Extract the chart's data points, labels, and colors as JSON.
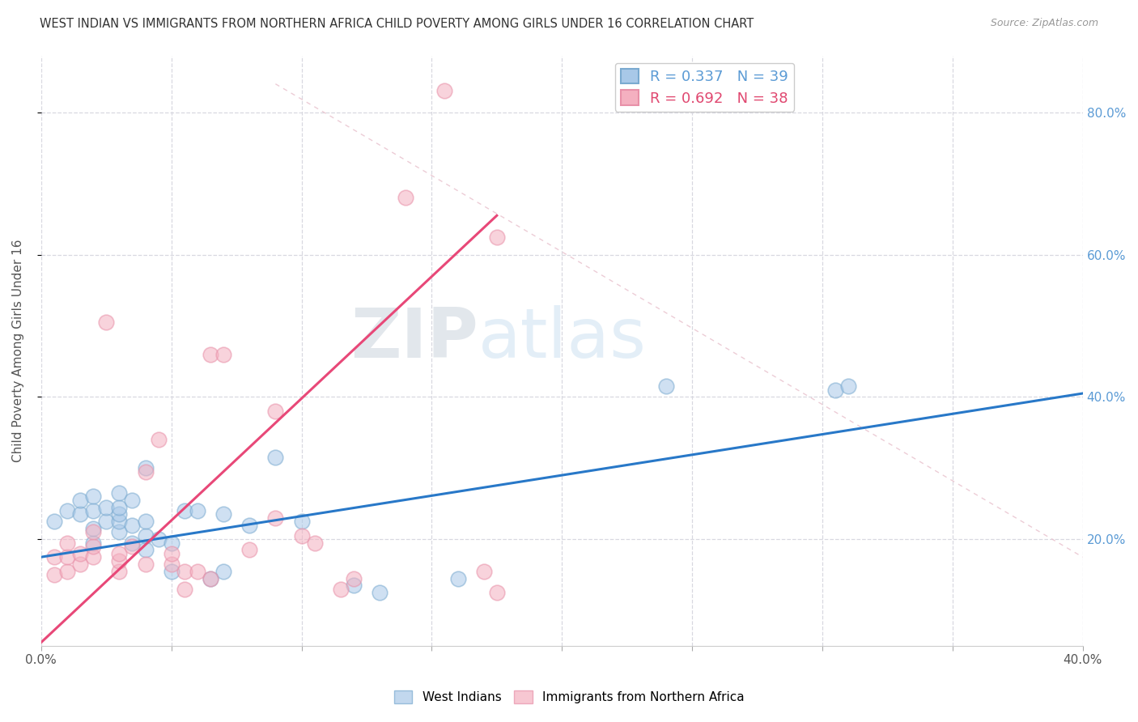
{
  "title": "WEST INDIAN VS IMMIGRANTS FROM NORTHERN AFRICA CHILD POVERTY AMONG GIRLS UNDER 16 CORRELATION CHART",
  "source": "Source: ZipAtlas.com",
  "ylabel": "Child Poverty Among Girls Under 16",
  "xlim": [
    0,
    0.4
  ],
  "ylim": [
    0.05,
    0.88
  ],
  "xtick_positions": [
    0.0,
    0.05,
    0.1,
    0.15,
    0.2,
    0.25,
    0.3,
    0.35,
    0.4
  ],
  "xtick_labels": [
    "0.0%",
    "",
    "",
    "",
    "",
    "",
    "",
    "",
    "40.0%"
  ],
  "ytick_positions": [
    0.2,
    0.4,
    0.6,
    0.8
  ],
  "ytick_labels": [
    "20.0%",
    "40.0%",
    "60.0%",
    "80.0%"
  ],
  "blue_R": 0.337,
  "blue_N": 39,
  "pink_R": 0.692,
  "pink_N": 38,
  "blue_color": "#a8c8e8",
  "pink_color": "#f4b0c0",
  "blue_edge_color": "#7aaad0",
  "pink_edge_color": "#e890a8",
  "blue_line_color": "#2878c8",
  "pink_line_color": "#e84878",
  "grid_color": "#d8d8e0",
  "legend_label_blue": "West Indians",
  "legend_label_pink": "Immigrants from Northern Africa",
  "blue_scatter_x": [
    0.005,
    0.01,
    0.015,
    0.015,
    0.02,
    0.02,
    0.02,
    0.02,
    0.025,
    0.025,
    0.03,
    0.03,
    0.03,
    0.03,
    0.03,
    0.035,
    0.035,
    0.035,
    0.04,
    0.04,
    0.04,
    0.04,
    0.045,
    0.05,
    0.05,
    0.055,
    0.06,
    0.065,
    0.07,
    0.07,
    0.08,
    0.09,
    0.1,
    0.12,
    0.13,
    0.16,
    0.24,
    0.305,
    0.31
  ],
  "blue_scatter_y": [
    0.225,
    0.24,
    0.235,
    0.255,
    0.195,
    0.215,
    0.24,
    0.26,
    0.225,
    0.245,
    0.21,
    0.225,
    0.235,
    0.245,
    0.265,
    0.195,
    0.22,
    0.255,
    0.185,
    0.205,
    0.225,
    0.3,
    0.2,
    0.155,
    0.195,
    0.24,
    0.24,
    0.145,
    0.155,
    0.235,
    0.22,
    0.315,
    0.225,
    0.135,
    0.125,
    0.145,
    0.415,
    0.41,
    0.415
  ],
  "pink_scatter_x": [
    0.005,
    0.005,
    0.01,
    0.01,
    0.01,
    0.015,
    0.015,
    0.02,
    0.02,
    0.02,
    0.025,
    0.03,
    0.03,
    0.03,
    0.035,
    0.04,
    0.04,
    0.045,
    0.05,
    0.05,
    0.055,
    0.055,
    0.06,
    0.065,
    0.065,
    0.07,
    0.08,
    0.09,
    0.09,
    0.1,
    0.105,
    0.115,
    0.12,
    0.14,
    0.155,
    0.17,
    0.175,
    0.175
  ],
  "pink_scatter_y": [
    0.15,
    0.175,
    0.155,
    0.175,
    0.195,
    0.165,
    0.18,
    0.175,
    0.19,
    0.21,
    0.505,
    0.155,
    0.17,
    0.18,
    0.19,
    0.165,
    0.295,
    0.34,
    0.165,
    0.18,
    0.13,
    0.155,
    0.155,
    0.145,
    0.46,
    0.46,
    0.185,
    0.23,
    0.38,
    0.205,
    0.195,
    0.13,
    0.145,
    0.68,
    0.83,
    0.155,
    0.625,
    0.125
  ],
  "blue_line_x": [
    0.0,
    0.4
  ],
  "blue_line_y": [
    0.175,
    0.405
  ],
  "pink_line_x": [
    0.0,
    0.175
  ],
  "pink_line_y": [
    0.055,
    0.655
  ],
  "ref_line_x": [
    0.09,
    0.4
  ],
  "ref_line_y": [
    0.84,
    0.175
  ],
  "watermark_zip": "ZIP",
  "watermark_atlas": "atlas",
  "background_color": "#ffffff"
}
